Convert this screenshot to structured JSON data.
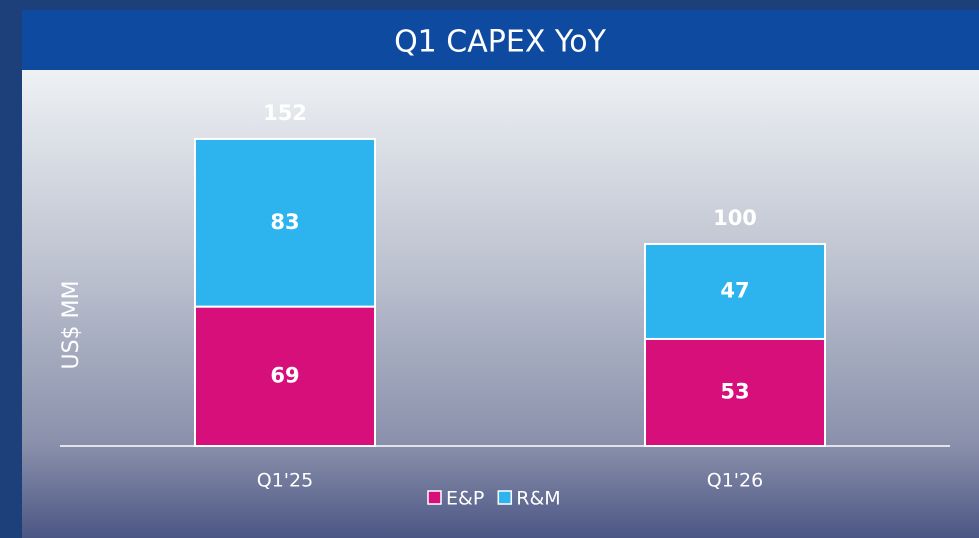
{
  "chart_data": {
    "type": "stacked-bar",
    "title": "Q1 CAPEX YoY",
    "y_label": "US$ MM",
    "categories": [
      "Q1'25",
      "Q1'26"
    ],
    "series": [
      {
        "name": "E&P",
        "color": "#d70f7b",
        "values": [
          69,
          53
        ]
      },
      {
        "name": "R&M",
        "color": "#2db4ee",
        "values": [
          83,
          47
        ]
      }
    ],
    "totals": [
      152,
      100
    ],
    "ylim": [
      0,
      180
    ]
  }
}
